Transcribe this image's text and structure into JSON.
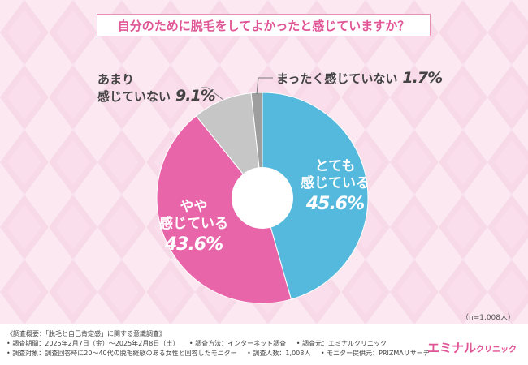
{
  "title": "自分のために脱毛をしてよかったと感じていますか？",
  "sample_note": "（n=1,008人）",
  "chart_data": {
    "type": "pie",
    "donut": true,
    "title": "自分のために脱毛をしてよかったと感じていますか？",
    "slices": [
      {
        "label": "とても感じている",
        "line1": "とても",
        "line2": "感じている",
        "value": 45.6,
        "value_label": "45.6%",
        "color": "#55b8dd"
      },
      {
        "label": "やや感じている",
        "line1": "やや",
        "line2": "感じている",
        "value": 43.6,
        "value_label": "43.6%",
        "color": "#e965a9"
      },
      {
        "label": "あまり感じていない",
        "line1": "あまり",
        "line2": "感じていない",
        "value": 9.1,
        "value_label": "9.1%",
        "color": "#c6c6c6"
      },
      {
        "label": "まったく感じていない",
        "line1": "まったく感じていない",
        "line2": "",
        "value": 1.7,
        "value_label": "1.7%",
        "color": "#9e9e9e"
      }
    ]
  },
  "footer": {
    "line1": "《調査概要：「脱毛と自己肯定感」に関する意識調査》",
    "line2a": "• 調査期間：2025年2月7日（金）〜2025年2月8日（土）",
    "line2b": "• 調査方法：インターネット調査",
    "line2c": "• 調査元：エミナルクリニック",
    "line3a": "• 調査対象：調査回答時に20〜40代の脱毛経験のある女性と回答したモニター",
    "line3b": "• 調査人数：1,008人",
    "line3c": "• モニター提供元：PRIZMAリサーチ",
    "logo_main": "エミナル",
    "logo_sub": "クリニック"
  }
}
